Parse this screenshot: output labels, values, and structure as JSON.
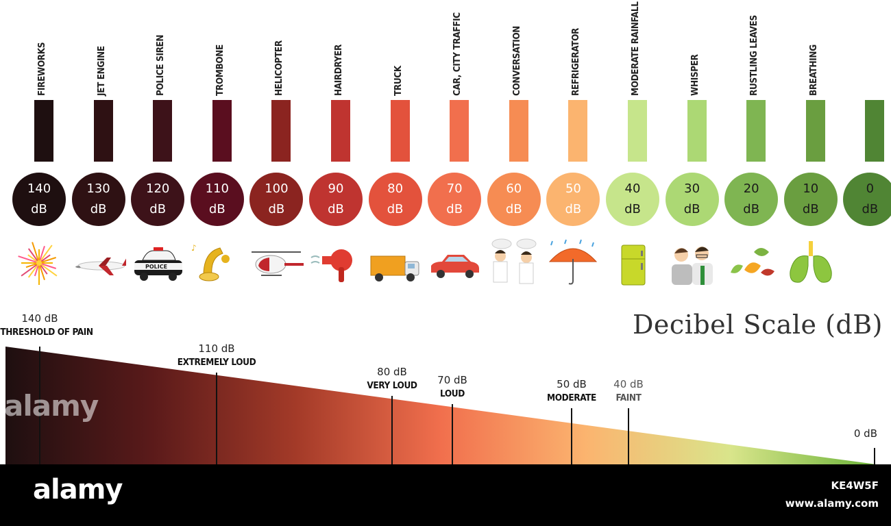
{
  "title": "Decibel Scale (dB)",
  "chart_data": {
    "type": "bar",
    "categories": [
      "FIREWORKS",
      "JET ENGINE",
      "POLICE SIREN",
      "TROMBONE",
      "HELICOPTER",
      "HAIRDRYER",
      "TRUCK",
      "CAR, CITY TRAFFIC",
      "CONVERSATION",
      "REFRIGERATOR",
      "MODERATE RAINFALL",
      "WHISPER",
      "RUSTLING LEAVES",
      "BREATHING",
      ""
    ],
    "values": [
      140,
      130,
      120,
      110,
      100,
      90,
      80,
      70,
      60,
      50,
      40,
      30,
      20,
      10,
      0
    ],
    "value_labels": [
      "140",
      "130",
      "120",
      "110",
      "100",
      "90",
      "80",
      "70",
      "60",
      "50",
      "40",
      "30",
      "20",
      "10",
      "0"
    ],
    "unit": "dB",
    "colors": [
      "#1e0f10",
      "#2e1113",
      "#3d1219",
      "#5a0e1f",
      "#8b2420",
      "#bf3430",
      "#e3523c",
      "#f16f4d",
      "#f68c53",
      "#fbb46f",
      "#c6e58b",
      "#acd874",
      "#7fb552",
      "#6a9e40",
      "#508534"
    ],
    "icons": [
      "fireworks-icon",
      "airplane-icon",
      "police-car-icon",
      "tuba-icon",
      "helicopter-icon",
      "hairdryer-icon",
      "truck-icon",
      "car-icon",
      "conversation-icon",
      "umbrella-rain-icon",
      "refrigerator-icon",
      "whisper-icon",
      "leaves-icon",
      "lungs-icon",
      ""
    ]
  },
  "scale": {
    "max": 140,
    "gradient": [
      "#1e0f10",
      "#5a1a1a",
      "#a33a28",
      "#f16f4d",
      "#fbb46f",
      "#d9e58b",
      "#6cb33a"
    ],
    "markers": [
      {
        "value": 140,
        "db": "140 dB",
        "category": "THRESHOLD OF PAIN"
      },
      {
        "value": 110,
        "db": "110 dB",
        "category": "EXTREMELY LOUD"
      },
      {
        "value": 80,
        "db": "80 dB",
        "category": "VERY LOUD"
      },
      {
        "value": 70,
        "db": "70 dB",
        "category": "LOUD"
      },
      {
        "value": 50,
        "db": "50 dB",
        "category": "MODERATE"
      },
      {
        "value": 40,
        "db": "40 dB",
        "category": "FAINT",
        "muted": true
      },
      {
        "value": 0,
        "db": "0 dB",
        "category": ""
      }
    ]
  },
  "watermark": {
    "logo": "alamy",
    "image_id": "KE4W5F",
    "url": "www.alamy.com"
  }
}
